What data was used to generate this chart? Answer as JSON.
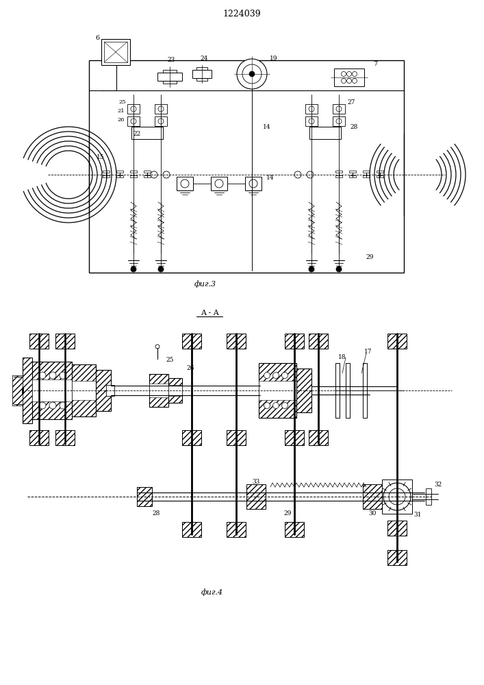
{
  "title": "1224039",
  "fig_width": 7.07,
  "fig_height": 10.0,
  "background_color": "#ffffff",
  "line_color": "#000000",
  "fig3_label": "фиг.3",
  "fig4_label": "фиг.4",
  "aa_label": "A - A"
}
